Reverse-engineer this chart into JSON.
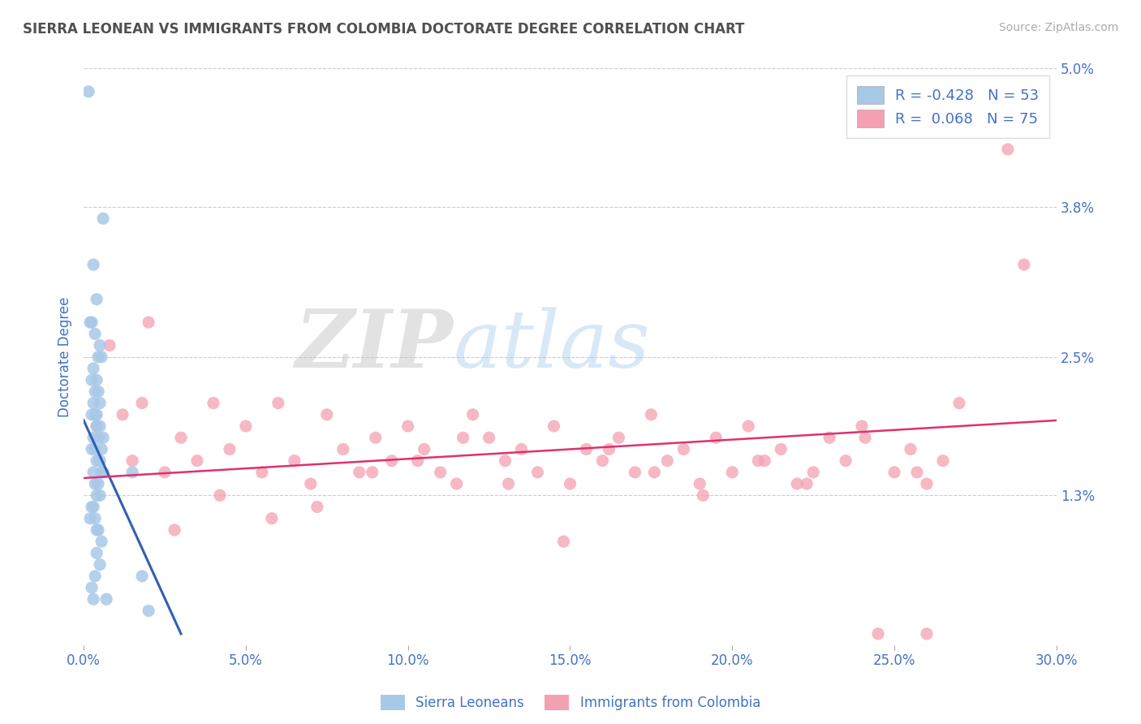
{
  "title": "SIERRA LEONEAN VS IMMIGRANTS FROM COLOMBIA DOCTORATE DEGREE CORRELATION CHART",
  "source": "Source: ZipAtlas.com",
  "ylabel": "Doctorate Degree",
  "xlim": [
    0.0,
    30.0
  ],
  "ylim": [
    0.0,
    5.0
  ],
  "xticks": [
    0.0,
    5.0,
    10.0,
    15.0,
    20.0,
    25.0,
    30.0
  ],
  "xticklabels": [
    "0.0%",
    "5.0%",
    "10.0%",
    "15.0%",
    "20.0%",
    "25.0%",
    "30.0%"
  ],
  "yticks": [
    0.0,
    1.3,
    2.5,
    3.8,
    5.0
  ],
  "yticklabels": [
    "",
    "1.3%",
    "2.5%",
    "3.8%",
    "5.0%"
  ],
  "blue_R": -0.428,
  "blue_N": 53,
  "pink_R": 0.068,
  "pink_N": 75,
  "blue_color": "#a8c8e8",
  "pink_color": "#f4a0b0",
  "blue_line_color": "#3060b0",
  "pink_line_color": "#e03070",
  "legend1": "Sierra Leoneans",
  "legend2": "Immigrants from Colombia",
  "watermark_zip": "ZIP",
  "watermark_atlas": "atlas",
  "background_color": "#ffffff",
  "title_color": "#505050",
  "axis_color": "#4472c4",
  "blue_scatter_x": [
    0.15,
    0.6,
    0.3,
    0.4,
    0.25,
    0.2,
    0.35,
    0.5,
    0.45,
    0.55,
    0.3,
    0.4,
    0.25,
    0.35,
    0.45,
    0.5,
    0.3,
    0.4,
    0.35,
    0.25,
    0.5,
    0.4,
    0.3,
    0.45,
    0.55,
    0.35,
    0.25,
    0.5,
    0.4,
    0.3,
    0.6,
    0.55,
    0.45,
    0.35,
    0.5,
    0.4,
    0.3,
    0.25,
    0.2,
    0.35,
    0.45,
    0.55,
    0.4,
    0.5,
    0.35,
    0.25,
    0.3,
    1.5,
    1.8,
    0.6,
    0.7,
    2.0,
    0.4
  ],
  "blue_scatter_y": [
    4.8,
    3.7,
    3.3,
    3.0,
    2.8,
    2.8,
    2.7,
    2.6,
    2.5,
    2.5,
    2.4,
    2.3,
    2.3,
    2.2,
    2.2,
    2.1,
    2.1,
    2.0,
    2.0,
    2.0,
    1.9,
    1.9,
    1.8,
    1.8,
    1.7,
    1.7,
    1.7,
    1.6,
    1.6,
    1.5,
    1.5,
    1.5,
    1.4,
    1.4,
    1.3,
    1.3,
    1.2,
    1.2,
    1.1,
    1.1,
    1.0,
    0.9,
    0.8,
    0.7,
    0.6,
    0.5,
    0.4,
    1.5,
    0.6,
    1.8,
    0.4,
    0.3,
    1.0
  ],
  "pink_scatter_x": [
    0.4,
    0.8,
    1.2,
    1.5,
    2.0,
    2.5,
    3.0,
    3.5,
    4.0,
    4.5,
    5.0,
    5.5,
    6.0,
    6.5,
    7.0,
    7.5,
    8.0,
    8.5,
    9.0,
    9.5,
    10.0,
    10.5,
    11.0,
    11.5,
    12.0,
    12.5,
    13.0,
    13.5,
    14.0,
    14.5,
    15.0,
    15.5,
    16.0,
    16.5,
    17.0,
    17.5,
    18.0,
    18.5,
    19.0,
    19.5,
    20.0,
    20.5,
    21.0,
    21.5,
    22.0,
    22.5,
    23.0,
    23.5,
    24.0,
    24.5,
    25.0,
    25.5,
    26.0,
    26.5,
    1.8,
    2.8,
    4.2,
    5.8,
    7.2,
    8.9,
    10.3,
    11.7,
    13.1,
    14.8,
    16.2,
    17.6,
    19.1,
    20.8,
    22.3,
    24.1,
    25.7,
    28.5,
    29.0,
    26.0,
    27.0
  ],
  "pink_scatter_y": [
    1.9,
    2.6,
    2.0,
    1.6,
    2.8,
    1.5,
    1.8,
    1.6,
    2.1,
    1.7,
    1.9,
    1.5,
    2.1,
    1.6,
    1.4,
    2.0,
    1.7,
    1.5,
    1.8,
    1.6,
    1.9,
    1.7,
    1.5,
    1.4,
    2.0,
    1.8,
    1.6,
    1.7,
    1.5,
    1.9,
    1.4,
    1.7,
    1.6,
    1.8,
    1.5,
    2.0,
    1.6,
    1.7,
    1.4,
    1.8,
    1.5,
    1.9,
    1.6,
    1.7,
    1.4,
    1.5,
    1.8,
    1.6,
    1.9,
    0.1,
    1.5,
    1.7,
    1.4,
    1.6,
    2.1,
    1.0,
    1.3,
    1.1,
    1.2,
    1.5,
    1.6,
    1.8,
    1.4,
    0.9,
    1.7,
    1.5,
    1.3,
    1.6,
    1.4,
    1.8,
    1.5,
    4.3,
    3.3,
    0.1,
    2.1
  ],
  "blue_trendline_x": [
    0.0,
    3.0
  ],
  "blue_trendline_y": [
    1.95,
    0.1
  ],
  "pink_trendline_x": [
    0.0,
    30.0
  ],
  "pink_trendline_y": [
    1.45,
    1.95
  ]
}
